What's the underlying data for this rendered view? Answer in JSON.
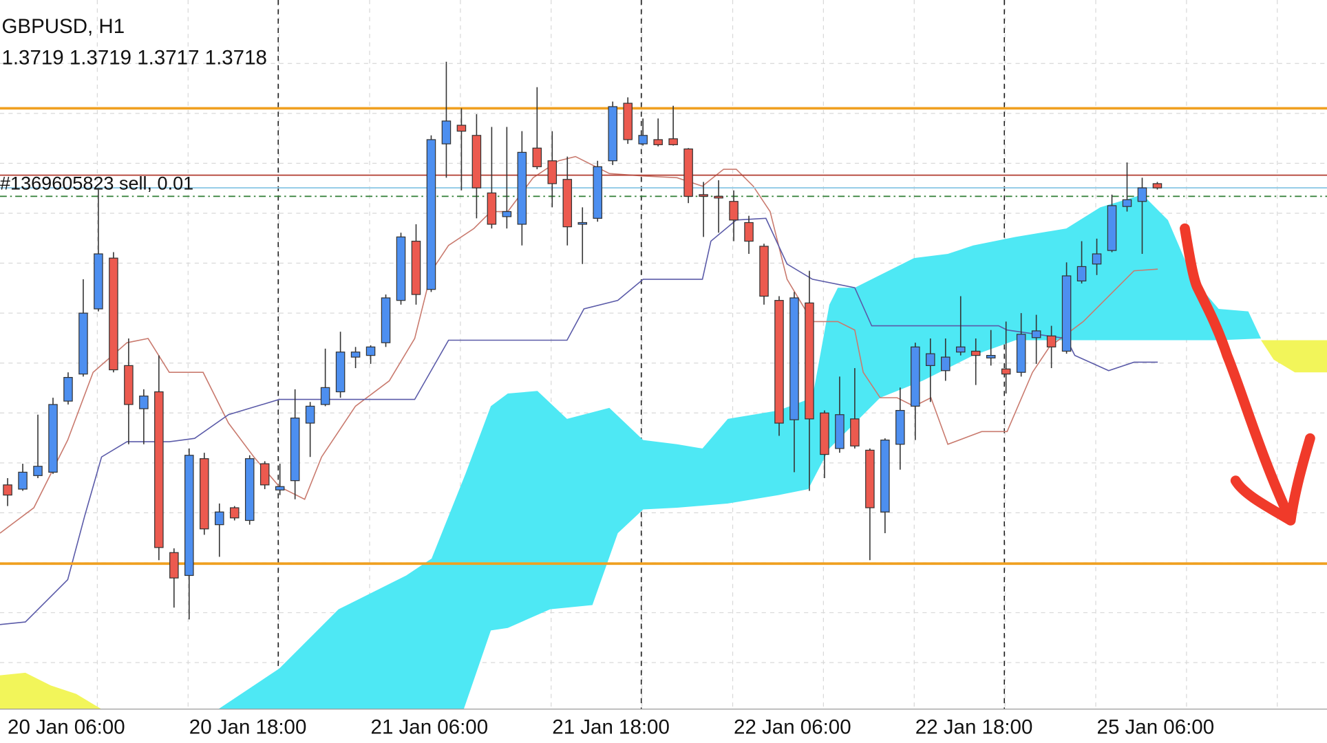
{
  "chart_data": {
    "type": "candlestick",
    "title": "GBPUSD, H1",
    "quote": "1.3719 1.3719 1.3717 1.3718",
    "order": {
      "label": "#1369605823 sell, 0.01",
      "value": 1.37206,
      "color": "#b03a2e"
    },
    "lines": [
      {
        "value": 1.37364,
        "color": "#f0a020",
        "style": "solid"
      },
      {
        "value": 1.36288,
        "color": "#f0a020",
        "style": "solid"
      },
      {
        "value": 1.37176,
        "color": "#8ecae6",
        "style": "solid"
      },
      {
        "value": 1.37156,
        "color": "#2e7d32",
        "style": "dashdot"
      }
    ],
    "ylim": [
      1.35944,
      1.3762
    ],
    "up_color": "#4d8ff0",
    "down_color": "#ec5a4f",
    "categories": [
      "20 Jan 06:00",
      null,
      null,
      null,
      null,
      null,
      null,
      null,
      null,
      null,
      null,
      null,
      "20 Jan 18:00",
      null,
      null,
      null,
      null,
      null,
      null,
      null,
      null,
      null,
      null,
      null,
      "21 Jan 06:00",
      null,
      null,
      null,
      null,
      null,
      null,
      null,
      null,
      null,
      null,
      null,
      "21 Jan 18:00",
      null,
      null,
      null,
      null,
      null,
      null,
      null,
      null,
      null,
      null,
      null,
      "22 Jan 06:00",
      null,
      null,
      null,
      null,
      null,
      null,
      null,
      null,
      null,
      null,
      null,
      "22 Jan 18:00",
      null,
      null,
      null,
      null,
      null,
      null,
      null,
      null,
      null,
      null,
      null,
      "25 Jan 06:00",
      null,
      null,
      null,
      null
    ],
    "open": [
      1.36474,
      1.36464,
      1.36496,
      1.36504,
      1.36672,
      1.36736,
      1.3689,
      1.3701,
      1.36756,
      1.36654,
      1.36694,
      1.36314,
      1.3626,
      1.36536,
      1.3638,
      1.3642,
      1.3639,
      1.36524,
      1.36462,
      1.36484,
      1.3662,
      1.36664,
      1.36694,
      1.36776,
      1.3678,
      1.3681,
      1.3691,
      1.3705,
      1.36936,
      1.3728,
      1.37324,
      1.373,
      1.37164,
      1.37108,
      1.3709,
      1.3727,
      1.3724,
      1.37196,
      1.3709,
      1.37104,
      1.3724,
      1.37376,
      1.3728,
      1.3729,
      1.37292,
      1.37268,
      1.3716,
      1.37156,
      1.37144,
      1.37094,
      1.37038,
      1.3691,
      1.36628,
      1.36904,
      1.36644,
      1.3656,
      1.3663,
      1.36556,
      1.3641,
      1.3657,
      1.3666,
      1.36756,
      1.36744,
      1.36788,
      1.3679,
      1.36774,
      1.36748,
      1.3674,
      1.36822,
      1.36826,
      1.3679,
      1.36956,
      1.36996,
      1.37028,
      1.37132,
      1.37144,
      1.37186
    ],
    "high": [
      1.3649,
      1.36524,
      1.3664,
      1.3668,
      1.3674,
      1.3696,
      1.37176,
      1.37024,
      1.3682,
      1.367,
      1.3678,
      1.36324,
      1.3656,
      1.3655,
      1.3643,
      1.36424,
      1.36544,
      1.3653,
      1.36524,
      1.367,
      1.3667,
      1.36796,
      1.36836,
      1.368,
      1.36804,
      1.36924,
      1.3707,
      1.3709,
      1.373,
      1.37474,
      1.37364,
      1.3735,
      1.3732,
      1.3732,
      1.3731,
      1.37414,
      1.3731,
      1.3725,
      1.3713,
      1.3724,
      1.3738,
      1.3739,
      1.3734,
      1.3734,
      1.3737,
      1.3727,
      1.3719,
      1.37194,
      1.3717,
      1.3711,
      1.37044,
      1.3692,
      1.3693,
      1.3698,
      1.3665,
      1.3673,
      1.3675,
      1.3656,
      1.36584,
      1.36704,
      1.3681,
      1.3682,
      1.3682,
      1.3692,
      1.3682,
      1.3684,
      1.3686,
      1.3688,
      1.36876,
      1.3685,
      1.37,
      1.3705,
      1.37056,
      1.3716,
      1.37236,
      1.372,
      1.3719
    ],
    "low": [
      1.36424,
      1.3646,
      1.3649,
      1.365,
      1.36664,
      1.3673,
      1.36884,
      1.3674,
      1.3657,
      1.3657,
      1.36296,
      1.36184,
      1.36156,
      1.36356,
      1.36304,
      1.3639,
      1.3638,
      1.36464,
      1.3645,
      1.3644,
      1.3654,
      1.3666,
      1.3668,
      1.3675,
      1.3676,
      1.368,
      1.369,
      1.369,
      1.3693,
      1.372,
      1.3717,
      1.37104,
      1.3708,
      1.3708,
      1.3704,
      1.3722,
      1.3713,
      1.3704,
      1.36996,
      1.37096,
      1.3723,
      1.3728,
      1.37276,
      1.37274,
      1.37276,
      1.3714,
      1.3706,
      1.3707,
      1.3705,
      1.3702,
      1.369,
      1.3659,
      1.36504,
      1.3646,
      1.3649,
      1.3655,
      1.3656,
      1.36296,
      1.3636,
      1.3651,
      1.3658,
      1.3667,
      1.3672,
      1.3678,
      1.3671,
      1.36756,
      1.3669,
      1.3673,
      1.3676,
      1.3675,
      1.36784,
      1.3695,
      1.3697,
      1.37024,
      1.3712,
      1.3702,
      1.37172
    ],
    "close": [
      1.3645,
      1.36504,
      1.36518,
      1.36664,
      1.36728,
      1.3688,
      1.3702,
      1.36746,
      1.36664,
      1.36684,
      1.36326,
      1.36254,
      1.36544,
      1.3637,
      1.3641,
      1.36396,
      1.36536,
      1.36474,
      1.3647,
      1.36632,
      1.3666,
      1.36704,
      1.36788,
      1.36788,
      1.368,
      1.36916,
      1.3706,
      1.36924,
      1.3729,
      1.37334,
      1.3731,
      1.37176,
      1.3709,
      1.3712,
      1.3726,
      1.37226,
      1.37186,
      1.37084,
      1.37094,
      1.37226,
      1.37368,
      1.3729,
      1.373,
      1.37278,
      1.37278,
      1.37156,
      1.37156,
      1.37152,
      1.371,
      1.3705,
      1.3692,
      1.3662,
      1.36916,
      1.3663,
      1.36546,
      1.3664,
      1.36566,
      1.3642,
      1.3658,
      1.3665,
      1.368,
      1.36784,
      1.36776,
      1.368,
      1.3678,
      1.3678,
      1.36736,
      1.3683,
      1.36838,
      1.368,
      1.36968,
      1.3699,
      1.3702,
      1.37134,
      1.37148,
      1.37176,
      1.37176
    ]
  }
}
